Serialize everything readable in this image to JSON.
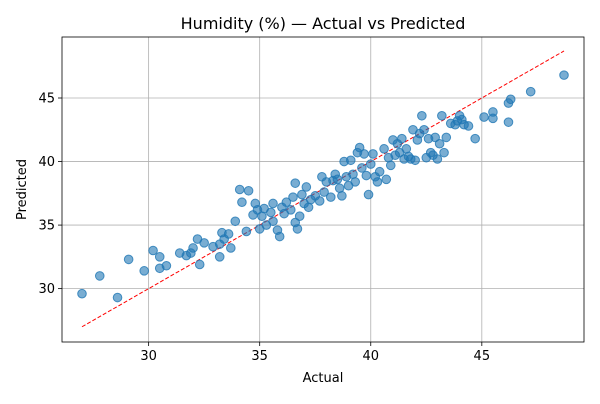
{
  "chart_data": {
    "type": "scatter",
    "title": "Humidity (%) — Actual vs Predicted",
    "xlabel": "Actual",
    "ylabel": "Predicted",
    "xlim": [
      26.1,
      49.6
    ],
    "ylim": [
      25.8,
      49.8
    ],
    "xticks": [
      30,
      35,
      40,
      45
    ],
    "yticks": [
      30,
      35,
      40,
      45
    ],
    "grid": true,
    "reference_line": {
      "style": "dashed",
      "color": "#ff0000",
      "from": [
        27.0,
        27.0
      ],
      "to": [
        48.7,
        48.7
      ]
    },
    "series": [
      {
        "color": "#1f77b4",
        "points": [
          [
            27.0,
            29.6
          ],
          [
            27.8,
            31.0
          ],
          [
            28.6,
            29.3
          ],
          [
            29.1,
            32.3
          ],
          [
            29.8,
            31.4
          ],
          [
            30.2,
            33.0
          ],
          [
            30.5,
            32.5
          ],
          [
            30.5,
            31.6
          ],
          [
            30.8,
            31.8
          ],
          [
            31.4,
            32.8
          ],
          [
            31.7,
            32.6
          ],
          [
            31.9,
            32.8
          ],
          [
            32.0,
            33.2
          ],
          [
            32.2,
            33.9
          ],
          [
            32.3,
            31.9
          ],
          [
            32.5,
            33.6
          ],
          [
            32.9,
            33.3
          ],
          [
            33.2,
            33.5
          ],
          [
            33.2,
            32.5
          ],
          [
            33.3,
            34.4
          ],
          [
            33.4,
            33.9
          ],
          [
            33.6,
            34.3
          ],
          [
            33.7,
            33.2
          ],
          [
            33.9,
            35.3
          ],
          [
            34.1,
            37.8
          ],
          [
            34.2,
            36.8
          ],
          [
            34.4,
            34.5
          ],
          [
            34.5,
            37.7
          ],
          [
            34.7,
            35.8
          ],
          [
            34.8,
            36.7
          ],
          [
            34.9,
            36.2
          ],
          [
            35.0,
            34.7
          ],
          [
            35.1,
            35.7
          ],
          [
            35.2,
            36.3
          ],
          [
            35.3,
            35.0
          ],
          [
            35.5,
            36.0
          ],
          [
            35.6,
            35.3
          ],
          [
            35.6,
            36.7
          ],
          [
            35.8,
            34.6
          ],
          [
            35.9,
            34.1
          ],
          [
            36.0,
            36.4
          ],
          [
            36.1,
            35.9
          ],
          [
            36.2,
            36.8
          ],
          [
            36.4,
            36.2
          ],
          [
            36.5,
            37.2
          ],
          [
            36.6,
            38.3
          ],
          [
            36.6,
            35.2
          ],
          [
            36.7,
            34.7
          ],
          [
            36.8,
            35.7
          ],
          [
            36.9,
            37.4
          ],
          [
            37.0,
            36.7
          ],
          [
            37.1,
            38.0
          ],
          [
            37.2,
            36.4
          ],
          [
            37.3,
            37.0
          ],
          [
            37.5,
            37.3
          ],
          [
            37.7,
            36.9
          ],
          [
            37.8,
            38.8
          ],
          [
            37.9,
            37.6
          ],
          [
            38.0,
            38.4
          ],
          [
            38.2,
            37.2
          ],
          [
            38.3,
            38.5
          ],
          [
            38.4,
            39.0
          ],
          [
            38.5,
            38.6
          ],
          [
            38.6,
            37.9
          ],
          [
            38.7,
            37.3
          ],
          [
            38.8,
            40.0
          ],
          [
            38.9,
            38.8
          ],
          [
            39.0,
            38.1
          ],
          [
            39.1,
            40.1
          ],
          [
            39.2,
            39.0
          ],
          [
            39.3,
            38.4
          ],
          [
            39.4,
            40.7
          ],
          [
            39.5,
            41.1
          ],
          [
            39.6,
            39.5
          ],
          [
            39.7,
            40.6
          ],
          [
            39.8,
            38.9
          ],
          [
            39.9,
            37.4
          ],
          [
            40.0,
            39.8
          ],
          [
            40.1,
            40.6
          ],
          [
            40.2,
            38.8
          ],
          [
            40.3,
            38.4
          ],
          [
            40.4,
            39.2
          ],
          [
            40.6,
            41.0
          ],
          [
            40.7,
            38.6
          ],
          [
            40.8,
            40.3
          ],
          [
            40.9,
            39.7
          ],
          [
            41.0,
            41.7
          ],
          [
            41.1,
            40.5
          ],
          [
            41.2,
            41.4
          ],
          [
            41.3,
            40.7
          ],
          [
            41.4,
            41.8
          ],
          [
            41.5,
            40.2
          ],
          [
            41.6,
            41.0
          ],
          [
            41.7,
            40.4
          ],
          [
            41.8,
            40.2
          ],
          [
            41.9,
            42.5
          ],
          [
            42.0,
            40.1
          ],
          [
            42.1,
            41.7
          ],
          [
            42.2,
            42.2
          ],
          [
            42.3,
            43.6
          ],
          [
            42.4,
            42.5
          ],
          [
            42.5,
            40.3
          ],
          [
            42.6,
            41.8
          ],
          [
            42.7,
            40.7
          ],
          [
            42.8,
            40.5
          ],
          [
            42.9,
            41.9
          ],
          [
            43.0,
            40.2
          ],
          [
            43.1,
            41.4
          ],
          [
            43.2,
            43.6
          ],
          [
            43.3,
            40.7
          ],
          [
            43.4,
            41.9
          ],
          [
            43.6,
            43.0
          ],
          [
            43.8,
            42.9
          ],
          [
            43.9,
            43.2
          ],
          [
            44.0,
            43.6
          ],
          [
            44.1,
            43.3
          ],
          [
            44.2,
            42.9
          ],
          [
            44.4,
            42.8
          ],
          [
            44.7,
            41.8
          ],
          [
            45.1,
            43.5
          ],
          [
            45.5,
            43.9
          ],
          [
            45.5,
            43.4
          ],
          [
            46.2,
            43.1
          ],
          [
            46.2,
            44.6
          ],
          [
            46.3,
            44.9
          ],
          [
            47.2,
            45.5
          ],
          [
            48.7,
            46.8
          ]
        ]
      }
    ]
  }
}
